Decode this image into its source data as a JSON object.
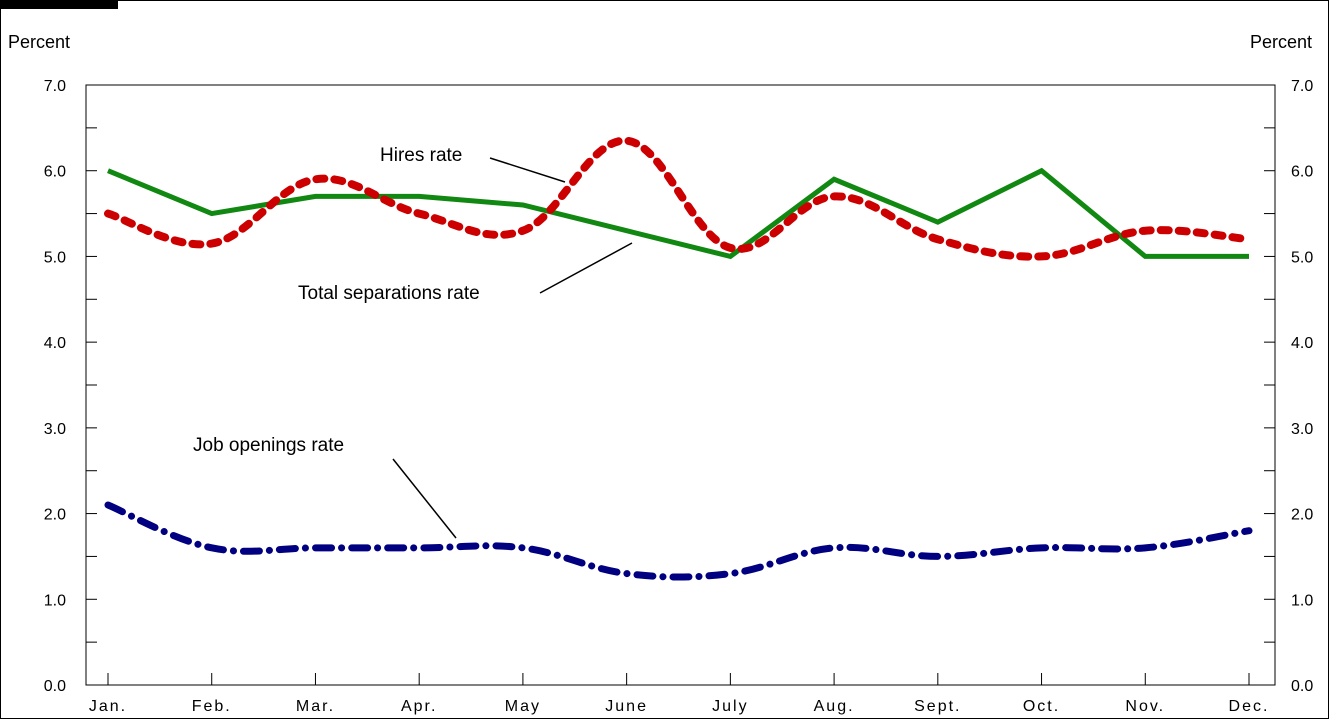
{
  "chart_data": {
    "type": "line",
    "categories": [
      "Jan.",
      "Feb.",
      "Mar.",
      "Apr.",
      "May",
      "June",
      "July",
      "Aug.",
      "Sept.",
      "Oct.",
      "Nov.",
      "Dec."
    ],
    "y_unit_left": "Percent",
    "y_unit_right": "Percent",
    "ylim": [
      0,
      7
    ],
    "yticks": [
      "0.0",
      "1.0",
      "2.0",
      "3.0",
      "4.0",
      "5.0",
      "6.0",
      "7.0"
    ],
    "grid": false,
    "series": [
      {
        "name": "Hires rate",
        "color": "#cc0000",
        "style": "dotted",
        "values": [
          5.5,
          5.15,
          5.9,
          5.5,
          5.3,
          6.35,
          5.1,
          5.7,
          5.2,
          5.0,
          5.3,
          5.2
        ]
      },
      {
        "name": "Total separations rate",
        "color": "#118811",
        "style": "solid",
        "values": [
          6.0,
          5.5,
          5.7,
          5.7,
          5.6,
          5.3,
          5.0,
          5.9,
          5.4,
          6.0,
          5.0,
          5.0
        ]
      },
      {
        "name": "Job openings rate",
        "color": "#000080",
        "style": "dash-dot",
        "values": [
          2.1,
          1.6,
          1.6,
          1.6,
          1.6,
          1.3,
          1.3,
          1.6,
          1.5,
          1.6,
          1.6,
          1.8
        ]
      }
    ],
    "annotations": [
      {
        "text": "Hires rate",
        "series": "Hires rate"
      },
      {
        "text": "Total separations rate",
        "series": "Total separations rate"
      },
      {
        "text": "Job openings rate",
        "series": "Job openings rate"
      }
    ]
  }
}
